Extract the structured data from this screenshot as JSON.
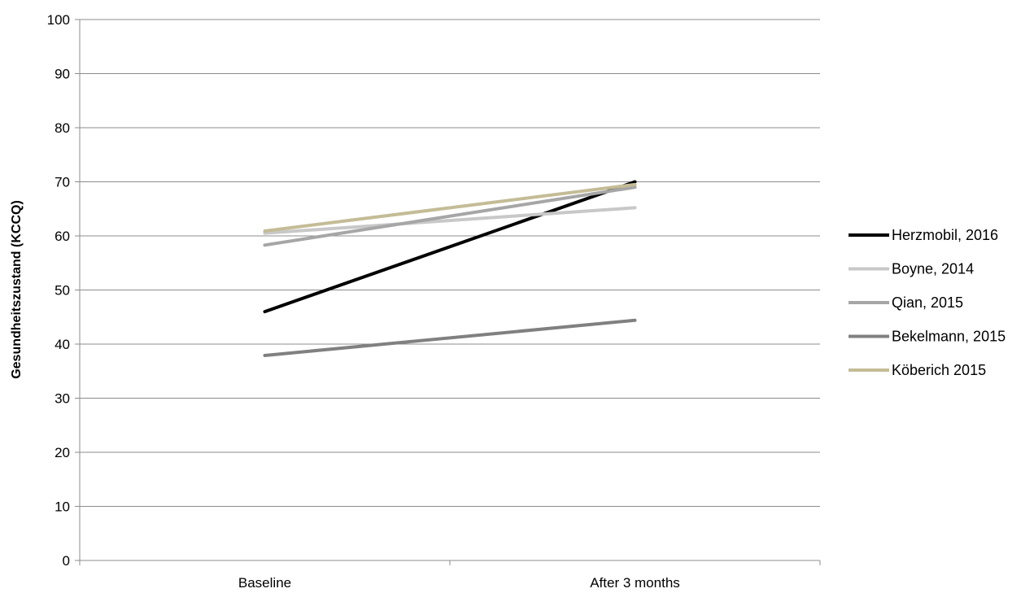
{
  "chart_data": {
    "type": "line",
    "title": "",
    "xlabel": "",
    "ylabel": "Gesundheitszustand (KCCQ)",
    "categories": [
      "Baseline",
      "After 3 months"
    ],
    "ylim": [
      0,
      100
    ],
    "yticks": [
      0,
      10,
      20,
      30,
      40,
      50,
      60,
      70,
      80,
      90,
      100
    ],
    "ytick_labels": [
      "0",
      "10",
      "20",
      "30",
      "40",
      "50",
      "60",
      "70",
      "80",
      "90",
      "100"
    ],
    "grid": true,
    "legend_position": "right",
    "series": [
      {
        "name": "Herzmobil, 2016",
        "values": [
          46.0,
          70.0
        ],
        "color": "#000000"
      },
      {
        "name": "Boyne, 2014",
        "values": [
          60.5,
          65.2
        ],
        "color": "#c8c8c8"
      },
      {
        "name": "Qian, 2015",
        "values": [
          58.3,
          69.0
        ],
        "color": "#a6a6a6"
      },
      {
        "name": "Bekelmann, 2015",
        "values": [
          37.9,
          44.4
        ],
        "color": "#808080"
      },
      {
        "name": "Köberich 2015",
        "values": [
          60.9,
          69.5
        ],
        "color": "#c4bc96"
      }
    ]
  }
}
